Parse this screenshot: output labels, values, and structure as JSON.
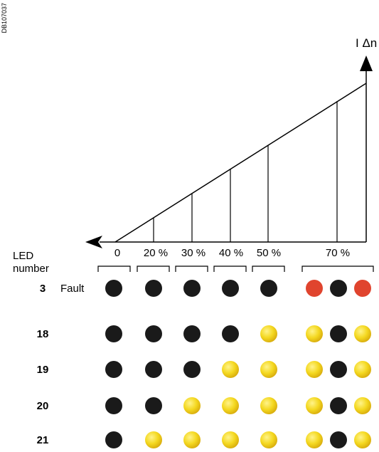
{
  "doc_id": "DB107037",
  "axis_label": "I Δn",
  "led_header_line1": "LED",
  "led_header_line2": "number",
  "fault_label": "Fault",
  "thresholds": [
    "0",
    "20 %",
    "30 %",
    "40 %",
    "50 %",
    "70 %"
  ],
  "colors": {
    "black": "#1a1a1a",
    "yellow": "#f2d21a",
    "red": "#e0442e",
    "line": "#000000"
  },
  "rows": [
    {
      "led": "3",
      "states": [
        "black",
        "black",
        "black",
        "black",
        "black",
        "red",
        "black",
        "red"
      ]
    },
    {
      "led": "18",
      "states": [
        "black",
        "black",
        "black",
        "black",
        "yellow",
        "yellow",
        "black",
        "yellow"
      ]
    },
    {
      "led": "19",
      "states": [
        "black",
        "black",
        "black",
        "yellow",
        "yellow",
        "yellow",
        "black",
        "yellow"
      ]
    },
    {
      "led": "20",
      "states": [
        "black",
        "black",
        "yellow",
        "yellow",
        "yellow",
        "yellow",
        "black",
        "yellow"
      ]
    },
    {
      "led": "21",
      "states": [
        "black",
        "yellow",
        "yellow",
        "yellow",
        "yellow",
        "yellow",
        "black",
        "yellow"
      ]
    }
  ]
}
